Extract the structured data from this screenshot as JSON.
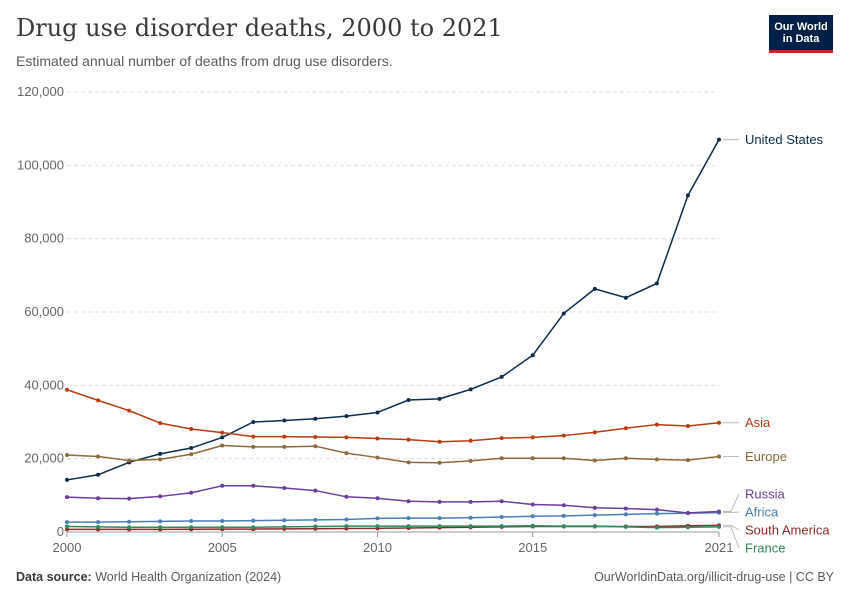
{
  "header": {
    "title": "Drug use disorder deaths, 2000 to 2021",
    "subtitle": "Estimated annual number of deaths from drug use disorders."
  },
  "logo": {
    "line1": "Our World",
    "line2": "in Data"
  },
  "footer": {
    "source_label": "Data source:",
    "source_text": "World Health Organization (2024)",
    "link_text": "OurWorldinData.org/illicit-drug-use",
    "separator": " | ",
    "license": "CC BY"
  },
  "colors": {
    "text": "#3a3a3a",
    "muted": "#5b5b5b",
    "grid": "#dddddd",
    "brand": "#002147",
    "brand_accent": "#ce261e"
  },
  "chart_data": {
    "type": "line",
    "title": "Drug use disorder deaths, 2000 to 2021",
    "subtitle": "Estimated annual number of deaths from drug use disorders.",
    "xlabel": "",
    "ylabel": "",
    "x": [
      2000,
      2001,
      2002,
      2003,
      2004,
      2005,
      2006,
      2007,
      2008,
      2009,
      2010,
      2011,
      2012,
      2013,
      2014,
      2015,
      2016,
      2017,
      2018,
      2019,
      2020,
      2021
    ],
    "xlim": [
      2000,
      2021
    ],
    "ylim": [
      0,
      120000
    ],
    "x_ticks": [
      {
        "value": 2000,
        "label": "2000"
      },
      {
        "value": 2005,
        "label": "2005"
      },
      {
        "value": 2010,
        "label": "2010"
      },
      {
        "value": 2015,
        "label": "2015"
      },
      {
        "value": 2021,
        "label": "2021"
      }
    ],
    "y_ticks": [
      {
        "value": 0,
        "label": "0"
      },
      {
        "value": 20000,
        "label": "20,000"
      },
      {
        "value": 40000,
        "label": "40,000"
      },
      {
        "value": 60000,
        "label": "60,000"
      },
      {
        "value": 80000,
        "label": "80,000"
      },
      {
        "value": 100000,
        "label": "100,000"
      },
      {
        "value": 120000,
        "label": "120,000"
      }
    ],
    "grid": true,
    "legend": "line-end labels on right",
    "series": [
      {
        "name": "United States",
        "color": "#0d2c4e",
        "values": [
          14200,
          15600,
          19000,
          21300,
          22900,
          25800,
          30000,
          30400,
          30900,
          31600,
          32600,
          36000,
          36300,
          38900,
          42300,
          48200,
          59600,
          66300,
          63900,
          67800,
          91800,
          107000
        ]
      },
      {
        "name": "Asia",
        "color": "#b83c12",
        "values": [
          38800,
          35900,
          33100,
          29700,
          28100,
          27100,
          26000,
          26000,
          25900,
          25800,
          25500,
          25200,
          24600,
          24900,
          25600,
          25800,
          26300,
          27200,
          28300,
          29300,
          28900,
          29800
        ]
      },
      {
        "name": "Europe",
        "color": "#8c6a3a",
        "values": [
          21000,
          20600,
          19500,
          19800,
          21200,
          23600,
          23200,
          23200,
          23400,
          21500,
          20300,
          19000,
          18900,
          19400,
          20100,
          20100,
          20100,
          19500,
          20100,
          19800,
          19600,
          20600
        ]
      },
      {
        "name": "Africa",
        "color": "#4a7fb5",
        "values": [
          2700,
          2700,
          2800,
          2900,
          3000,
          3000,
          3100,
          3200,
          3300,
          3400,
          3700,
          3800,
          3800,
          3900,
          4100,
          4300,
          4400,
          4600,
          4800,
          5000,
          5100,
          5300
        ]
      },
      {
        "name": "Russia",
        "color": "#6c3e9a",
        "values": [
          9500,
          9200,
          9100,
          9700,
          10700,
          12600,
          12600,
          12000,
          11300,
          9600,
          9200,
          8400,
          8200,
          8200,
          8400,
          7500,
          7300,
          6600,
          6400,
          6100,
          5200,
          5600
        ]
      },
      {
        "name": "South America",
        "color": "#8e2a2a",
        "values": [
          700,
          700,
          700,
          700,
          750,
          800,
          800,
          850,
          900,
          950,
          1000,
          1100,
          1200,
          1300,
          1400,
          1500,
          1500,
          1500,
          1500,
          1500,
          1700,
          1800
        ]
      },
      {
        "name": "France",
        "color": "#2e8b5e",
        "values": [
          1500,
          1400,
          1300,
          1300,
          1300,
          1300,
          1300,
          1400,
          1500,
          1600,
          1600,
          1600,
          1600,
          1600,
          1600,
          1700,
          1600,
          1600,
          1400,
          1200,
          1300,
          1400
        ]
      }
    ]
  }
}
